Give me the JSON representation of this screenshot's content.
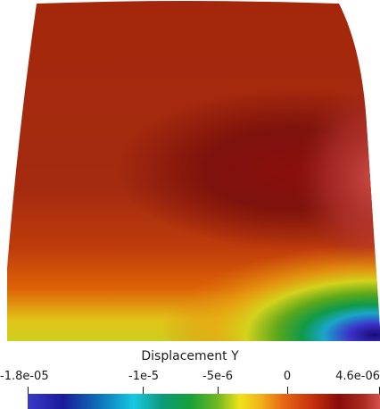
{
  "scalar_bar": {
    "title": "Displacement Y",
    "labels": {
      "min": "-1.8e-05",
      "t1": "-1e-5",
      "t2": "-5e-6",
      "t3": "0",
      "max": "4.6e-06"
    },
    "range": [
      -1.8e-05,
      4.6e-06
    ],
    "tick_values": [
      -1e-05,
      -5e-06,
      0
    ],
    "colormap": "rainbow-uniform",
    "orientation": "horizontal",
    "position": "bottom"
  },
  "colors": {
    "background": "#ffffff",
    "text": "#1a1a1a"
  }
}
